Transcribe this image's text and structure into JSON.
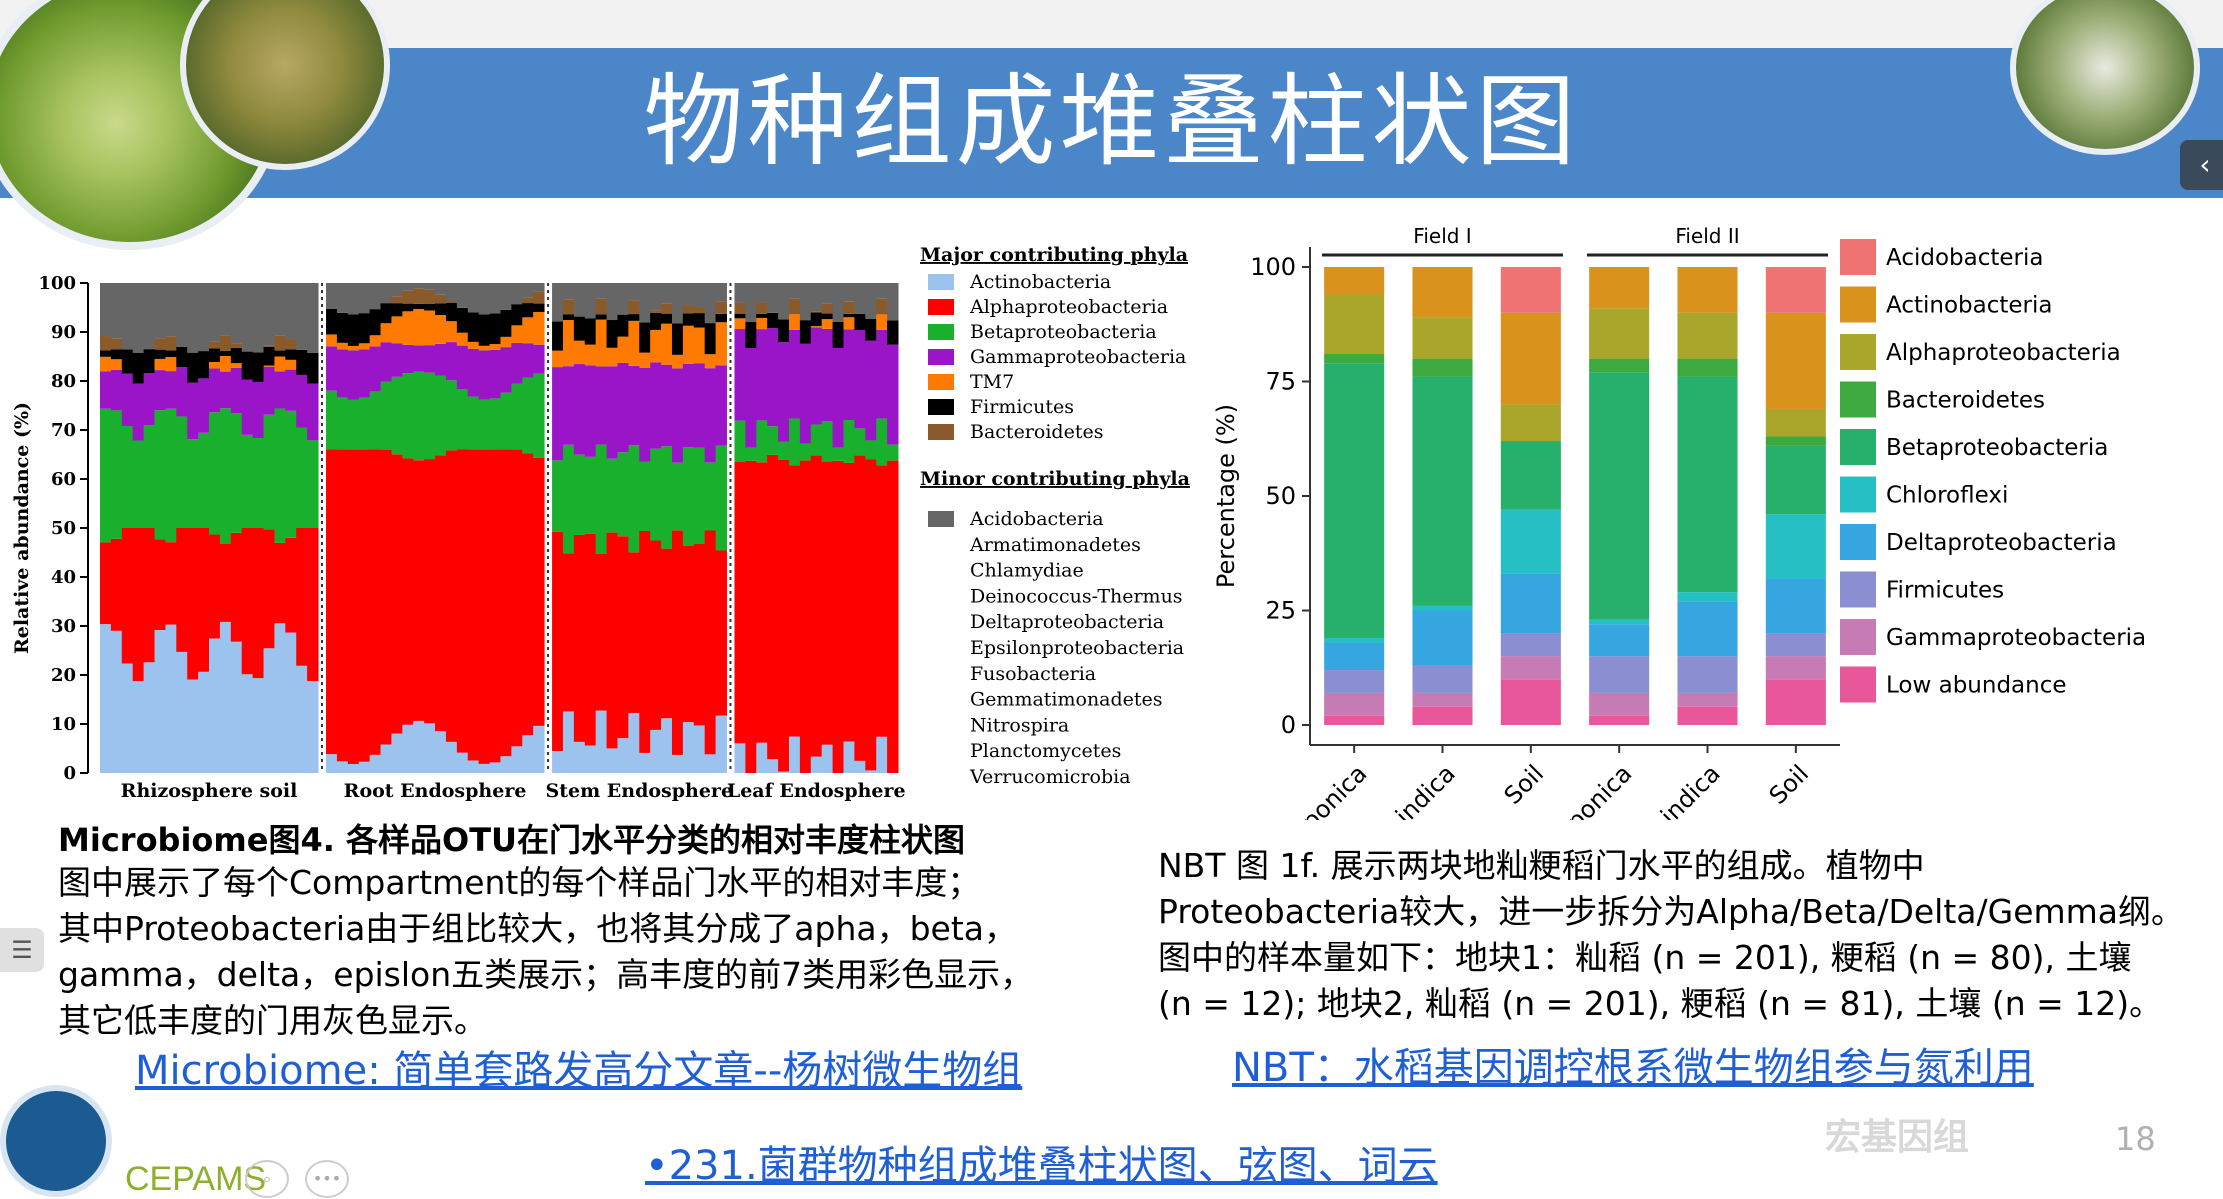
{
  "slide": {
    "title": "物种组成堆叠柱状图",
    "page_number": "18",
    "logo_text": "CEPAMS",
    "watermark": "宏基因组"
  },
  "left_caption": {
    "heading": "Microbiome图4. 各样品OTU在门水平分类的相对丰度柱状图",
    "lines": [
      "图中展示了每个Compartment的每个样品门水平的相对丰度；",
      "其中Proteobacteria由于组比较大，也将其分成了apha，beta，",
      "gamma，delta，epislon五类展示；高丰度的前7类用彩色显示，",
      "其它低丰度的门用灰色显示。"
    ],
    "link": "Microbiome: 简单套路发高分文章--杨树微生物组"
  },
  "right_caption": {
    "lines": [
      "NBT 图 1f. 展示两块地籼粳稻门水平的组成。植物中",
      "Proteobacteria较大，进一步拆分为Alpha/Beta/Delta/Gemma纲。",
      "图中的样本量如下：地块1：籼稻 (n = 201), 粳稻 (n = 80), 土壤",
      "(n = 12); 地块2, 籼稻 (n = 201), 粳稻 (n = 81), 土壤 (n = 12)。"
    ],
    "link": "NBT：水稻基因调控根系微生物组参与氮利用"
  },
  "bottom_link": "•231.菌群物种组成堆叠柱状图、弦图、词云",
  "chart_data": [
    {
      "type": "bar",
      "stacked": true,
      "ylabel": "Relative abundance (%)",
      "ylim": [
        0,
        100
      ],
      "yticks": [
        0,
        10,
        20,
        30,
        40,
        50,
        60,
        70,
        80,
        90,
        100
      ],
      "groups": [
        "Rhizosphere soil",
        "Root Endosphere",
        "Stem Endosphere",
        "Leaf Endosphere"
      ],
      "legend_major_title": "Major contributing phyla",
      "legend_minor_title": "Minor contributing phyla",
      "legend_major": [
        {
          "name": "Actinobacteria",
          "color": "#9cc3ee"
        },
        {
          "name": "Alphaproteobacteria",
          "color": "#ff0000"
        },
        {
          "name": "Betaproteobacteria",
          "color": "#18b02c"
        },
        {
          "name": "Gammaproteobacteria",
          "color": "#9b15c8"
        },
        {
          "name": "TM7",
          "color": "#ff7a00"
        },
        {
          "name": "Firmicutes",
          "color": "#000000"
        },
        {
          "name": "Bacteroidetes",
          "color": "#8a5a2a"
        }
      ],
      "legend_minor": [
        {
          "name": "Acidobacteria",
          "color": "#666666"
        },
        {
          "name": "Armatimonadetes"
        },
        {
          "name": "Chlamydiae"
        },
        {
          "name": "Deinococcus-Thermus"
        },
        {
          "name": "Deltaproteobacteria"
        },
        {
          "name": "Epsilonproteobacteria"
        },
        {
          "name": "Fusobacteria"
        },
        {
          "name": "Gemmatimonadetes"
        },
        {
          "name": "Nitrospira"
        },
        {
          "name": "Planctomycetes"
        },
        {
          "name": "Verrucomicrobia"
        }
      ],
      "group_data": [
        {
          "name": "Rhizosphere soil",
          "bars": 20,
          "profile": [
            25,
            25,
            23,
            10,
            0,
            4,
            0,
            13
          ]
        },
        {
          "name": "Root Endosphere",
          "bars": 20,
          "profile": [
            6,
            60,
            14,
            8,
            4,
            4,
            0,
            4
          ]
        },
        {
          "name": "Stem Endosphere",
          "bars": 16,
          "profile": [
            8,
            40,
            18,
            18,
            6,
            4,
            0,
            6
          ]
        },
        {
          "name": "Leaf Endosphere",
          "bars": 15,
          "profile": [
            3,
            62,
            6,
            20,
            0,
            3,
            0,
            6
          ]
        }
      ]
    },
    {
      "type": "bar",
      "stacked": true,
      "ylabel": "Percentage (%)",
      "ylim": [
        0,
        100
      ],
      "yticks": [
        0,
        25,
        50,
        75,
        100
      ],
      "facets": [
        "Field I",
        "Field II"
      ],
      "categories": [
        "japonica",
        "indica",
        "Soil",
        "japonica",
        "indica",
        "Soil"
      ],
      "series": [
        {
          "name": "Low abundance",
          "color": "#e7579a",
          "values": [
            2,
            4,
            10,
            2,
            4,
            10
          ]
        },
        {
          "name": "Gammaproteobacteria",
          "color": "#c77bb5",
          "values": [
            5,
            3,
            5,
            5,
            3,
            5
          ]
        },
        {
          "name": "Firmicutes",
          "color": "#8b8fd1",
          "values": [
            5,
            6,
            5,
            8,
            8,
            5
          ]
        },
        {
          "name": "Deltaproteobacteria",
          "color": "#35a6e0",
          "values": [
            6,
            12,
            13,
            7,
            12,
            12
          ]
        },
        {
          "name": "Chloroflexi",
          "color": "#25bfc4",
          "values": [
            1,
            1,
            14,
            1,
            2,
            14
          ]
        },
        {
          "name": "Betaproteobacteria",
          "color": "#27b06c",
          "values": [
            60,
            50,
            15,
            54,
            47,
            15
          ]
        },
        {
          "name": "Bacteroidetes",
          "color": "#3daa3f",
          "values": [
            2,
            4,
            0,
            3,
            4,
            2
          ]
        },
        {
          "name": "Alphaproteobacteria",
          "color": "#a9a62b",
          "values": [
            13,
            9,
            8,
            11,
            10,
            6
          ]
        },
        {
          "name": "Actinobacteria",
          "color": "#d9921c",
          "values": [
            6,
            11,
            20,
            9,
            10,
            21
          ]
        },
        {
          "name": "Acidobacteria",
          "color": "#ef7372",
          "values": [
            0,
            0,
            10,
            0,
            0,
            10
          ]
        }
      ]
    }
  ]
}
